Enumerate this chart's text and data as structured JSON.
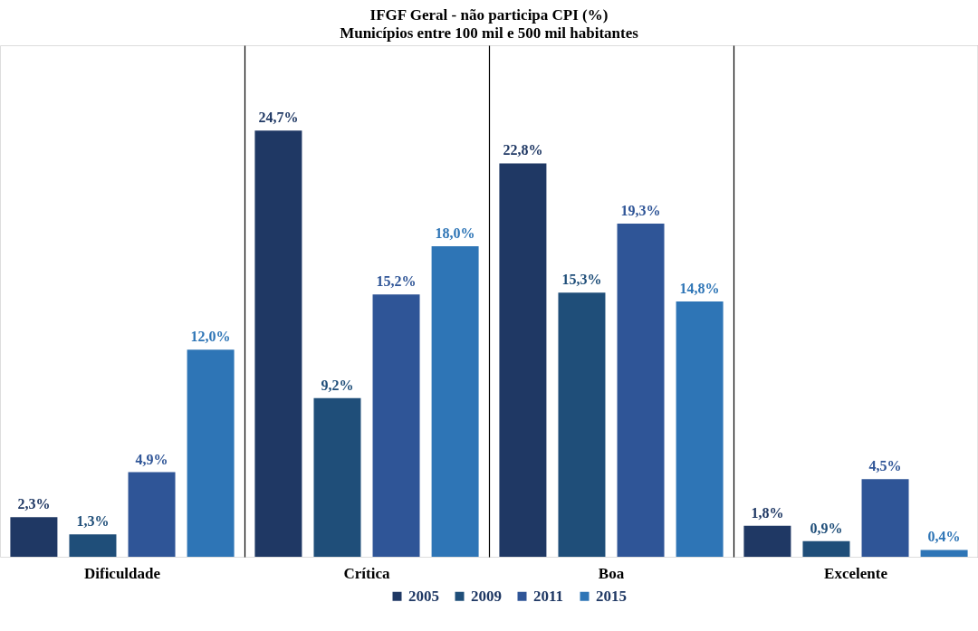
{
  "chart_data": {
    "type": "bar",
    "title": "IFGF Geral - não participa CPI (%)",
    "subtitle": "Municípios entre 100 mil e 500 mil habitantes",
    "categories": [
      "Dificuldade",
      "Crítica",
      "Boa",
      "Excelente"
    ],
    "series": [
      {
        "name": "2005",
        "color": "#1f3864",
        "values": [
          2.3,
          24.7,
          22.8,
          1.8
        ],
        "value_labels": [
          "2,3%",
          "24,7%",
          "22,8%",
          "1,8%"
        ]
      },
      {
        "name": "2009",
        "color": "#1f4e79",
        "values": [
          1.3,
          9.2,
          15.3,
          0.9
        ],
        "value_labels": [
          "1,3%",
          "9,2%",
          "15,3%",
          "0,9%"
        ]
      },
      {
        "name": "2011",
        "color": "#2f5597",
        "values": [
          4.9,
          15.2,
          19.3,
          4.5
        ],
        "value_labels": [
          "4,9%",
          "15,2%",
          "19,3%",
          "4,5%"
        ]
      },
      {
        "name": "2015",
        "color": "#2e75b6",
        "values": [
          12.0,
          18.0,
          14.8,
          0.4
        ],
        "value_labels": [
          "12,0%",
          "18,0%",
          "14,8%",
          "0,4%"
        ]
      }
    ],
    "grid": "x",
    "legend": "bottom"
  }
}
